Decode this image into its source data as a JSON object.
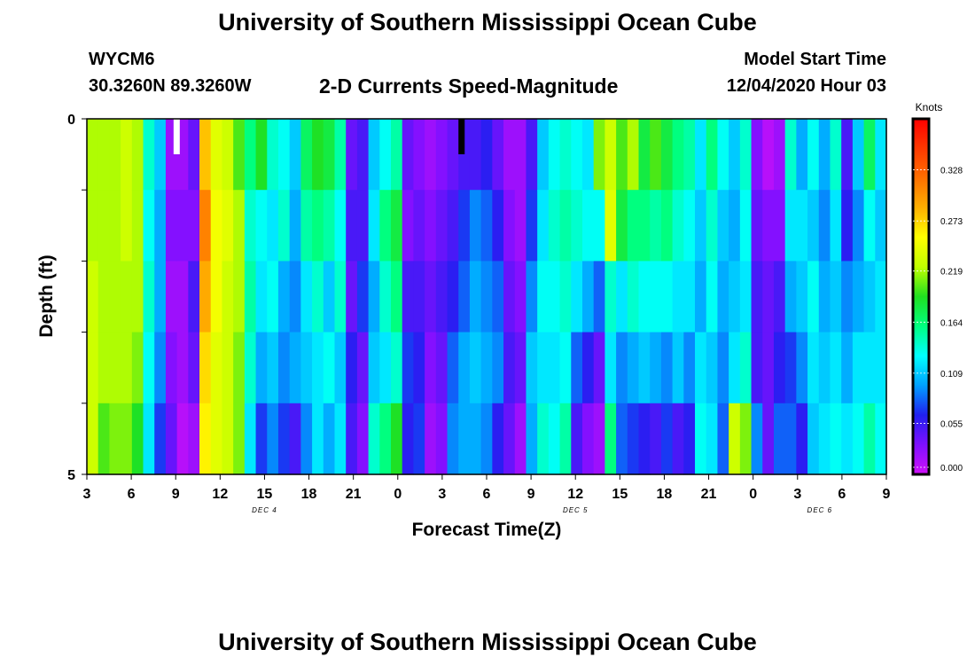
{
  "header": {
    "title": "University of Southern Mississippi Ocean Cube",
    "station_id": "WYCM6",
    "station_coords": "30.3260N 89.3260W",
    "chart_title": "2-D Currents Speed-Magnitude",
    "model_start_label": "Model Start Time",
    "model_start_value": "12/04/2020 Hour 03"
  },
  "footer": {
    "title": "University of Southern Mississippi Ocean Cube"
  },
  "chart_data": {
    "type": "heatmap",
    "title": "2-D Currents Speed-Magnitude",
    "xlabel": "Forecast Time(Z)",
    "ylabel": "Depth (ft)",
    "x_ticks": [
      "3",
      "6",
      "9",
      "12",
      "15",
      "18",
      "21",
      "0",
      "3",
      "6",
      "9",
      "12",
      "15",
      "18",
      "21",
      "0",
      "3",
      "6",
      "9"
    ],
    "x_range_hours": [
      0,
      54
    ],
    "date_labels": [
      {
        "label": "DEC 4",
        "hour": 12
      },
      {
        "label": "DEC 5",
        "hour": 33
      },
      {
        "label": "DEC 6",
        "hour": 49.5
      }
    ],
    "y_ticks": [
      "0",
      "5"
    ],
    "ylim": [
      0,
      5
    ],
    "depth_levels": 5,
    "colorbar": {
      "label": "Knots",
      "ticks": [
        "0.328",
        "0.273",
        "0.219",
        "0.164",
        "0.109",
        "0.055",
        "0.000"
      ],
      "range": [
        0,
        0.383
      ],
      "colors": [
        "#d010f8",
        "#7f10ff",
        "#2020f0",
        "#00a0ff",
        "#00ffff",
        "#00ff80",
        "#20e020",
        "#c0ff00",
        "#ffff00",
        "#ffb000",
        "#ff7000",
        "#ff3800",
        "#ff0000"
      ]
    },
    "column_speed_profiles_knots": [
      [
        0.22,
        0.22,
        0.23,
        0.23,
        0.23
      ],
      [
        0.22,
        0.22,
        0.22,
        0.22,
        0.2
      ],
      [
        0.22,
        0.22,
        0.22,
        0.22,
        0.21
      ],
      [
        0.23,
        0.23,
        0.22,
        0.22,
        0.21
      ],
      [
        0.22,
        0.22,
        0.22,
        0.21,
        0.19
      ],
      [
        0.14,
        0.13,
        0.14,
        0.13,
        0.12
      ],
      [
        0.11,
        0.1,
        0.1,
        0.09,
        0.07
      ],
      [
        0.02,
        0.03,
        0.02,
        0.03,
        0.04
      ],
      [
        0.02,
        0.03,
        0.02,
        0.02,
        0.01
      ],
      [
        0.04,
        0.03,
        0.05,
        0.04,
        0.02
      ],
      [
        0.28,
        0.31,
        0.29,
        0.27,
        0.26
      ],
      [
        0.24,
        0.25,
        0.25,
        0.24,
        0.24
      ],
      [
        0.23,
        0.24,
        0.23,
        0.23,
        0.23
      ],
      [
        0.2,
        0.22,
        0.22,
        0.21,
        0.21
      ],
      [
        0.16,
        0.14,
        0.15,
        0.14,
        0.12
      ],
      [
        0.19,
        0.13,
        0.12,
        0.1,
        0.07
      ],
      [
        0.14,
        0.12,
        0.13,
        0.11,
        0.09
      ],
      [
        0.13,
        0.14,
        0.1,
        0.09,
        0.07
      ],
      [
        0.11,
        0.1,
        0.09,
        0.1,
        0.05
      ],
      [
        0.17,
        0.15,
        0.12,
        0.11,
        0.09
      ],
      [
        0.19,
        0.16,
        0.14,
        0.12,
        0.12
      ],
      [
        0.18,
        0.15,
        0.11,
        0.13,
        0.1
      ],
      [
        0.15,
        0.13,
        0.14,
        0.11,
        0.12
      ],
      [
        0.04,
        0.05,
        0.04,
        0.06,
        0.05
      ],
      [
        0.05,
        0.05,
        0.07,
        0.04,
        0.03
      ],
      [
        0.11,
        0.12,
        0.1,
        0.11,
        0.14
      ],
      [
        0.13,
        0.16,
        0.14,
        0.12,
        0.16
      ],
      [
        0.15,
        0.18,
        0.16,
        0.14,
        0.19
      ],
      [
        0.04,
        0.03,
        0.05,
        0.07,
        0.06
      ],
      [
        0.03,
        0.04,
        0.05,
        0.06,
        0.07
      ],
      [
        0.02,
        0.03,
        0.04,
        0.03,
        0.02
      ],
      [
        0.03,
        0.04,
        0.05,
        0.04,
        0.03
      ],
      [
        0.04,
        0.05,
        0.06,
        0.08,
        0.09
      ],
      [
        0.05,
        0.07,
        0.08,
        0.1,
        0.1
      ],
      [
        0.05,
        0.09,
        0.1,
        0.11,
        0.1
      ],
      [
        0.06,
        0.08,
        0.09,
        0.1,
        0.09
      ],
      [
        0.04,
        0.06,
        0.08,
        0.09,
        0.06
      ],
      [
        0.02,
        0.03,
        0.04,
        0.05,
        0.04
      ],
      [
        0.02,
        0.02,
        0.03,
        0.04,
        0.02
      ],
      [
        0.05,
        0.07,
        0.09,
        0.11,
        0.1
      ],
      [
        0.11,
        0.12,
        0.13,
        0.12,
        0.14
      ],
      [
        0.13,
        0.14,
        0.13,
        0.12,
        0.13
      ],
      [
        0.14,
        0.15,
        0.14,
        0.13,
        0.15
      ],
      [
        0.13,
        0.14,
        0.12,
        0.08,
        0.05
      ],
      [
        0.12,
        0.13,
        0.1,
        0.06,
        0.03
      ],
      [
        0.21,
        0.13,
        0.08,
        0.04,
        0.02
      ],
      [
        0.23,
        0.24,
        0.14,
        0.12,
        0.16
      ],
      [
        0.2,
        0.18,
        0.12,
        0.09,
        0.08
      ],
      [
        0.22,
        0.16,
        0.14,
        0.1,
        0.07
      ],
      [
        0.18,
        0.16,
        0.13,
        0.11,
        0.06
      ],
      [
        0.2,
        0.15,
        0.13,
        0.1,
        0.05
      ],
      [
        0.18,
        0.16,
        0.13,
        0.09,
        0.07
      ],
      [
        0.16,
        0.14,
        0.12,
        0.11,
        0.05
      ],
      [
        0.15,
        0.13,
        0.12,
        0.09,
        0.06
      ],
      [
        0.12,
        0.11,
        0.1,
        0.12,
        0.13
      ],
      [
        0.16,
        0.14,
        0.13,
        0.11,
        0.12
      ],
      [
        0.13,
        0.11,
        0.1,
        0.09,
        0.08
      ],
      [
        0.11,
        0.1,
        0.11,
        0.12,
        0.23
      ],
      [
        0.14,
        0.13,
        0.12,
        0.14,
        0.21
      ],
      [
        0.03,
        0.04,
        0.05,
        0.05,
        0.09
      ],
      [
        0.01,
        0.03,
        0.04,
        0.04,
        0.04
      ],
      [
        0.02,
        0.03,
        0.05,
        0.06,
        0.08
      ],
      [
        0.14,
        0.12,
        0.1,
        0.07,
        0.08
      ],
      [
        0.1,
        0.12,
        0.11,
        0.09,
        0.06
      ],
      [
        0.13,
        0.11,
        0.13,
        0.12,
        0.11
      ],
      [
        0.1,
        0.09,
        0.1,
        0.11,
        0.12
      ],
      [
        0.14,
        0.12,
        0.11,
        0.12,
        0.13
      ],
      [
        0.05,
        0.06,
        0.09,
        0.1,
        0.12
      ],
      [
        0.11,
        0.09,
        0.1,
        0.12,
        0.13
      ],
      [
        0.17,
        0.13,
        0.11,
        0.12,
        0.15
      ],
      [
        0.12,
        0.11,
        0.12,
        0.12,
        0.13
      ]
    ]
  }
}
